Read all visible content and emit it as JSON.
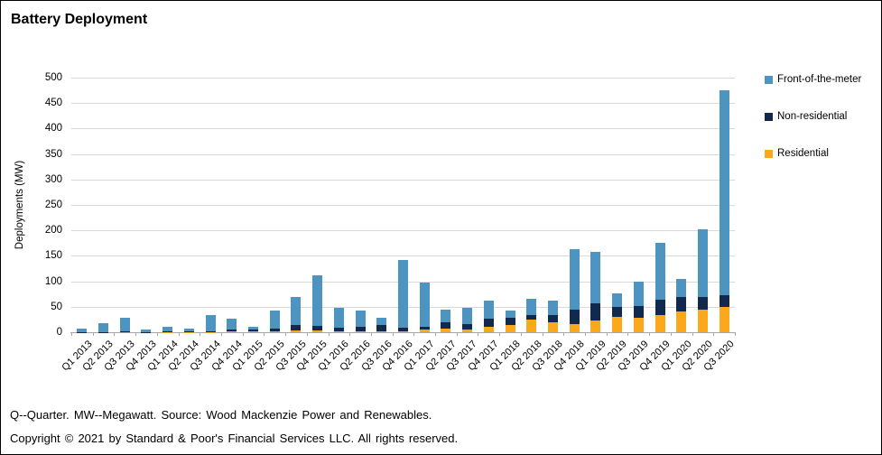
{
  "title": "Battery Deployment",
  "footer": {
    "line1": "Q--Quarter. MW--Megawatt. Source: Wood Mackenzie Power and Renewables.",
    "line2": "Copyright © 2021 by Standard & Poor's Financial Services LLC. All rights reserved."
  },
  "colors": {
    "front_of_the_meter": "#4D94C1",
    "non_residential": "#12294F",
    "residential": "#FBA81C",
    "gridline": "#d9d9d9",
    "axis": "#a6a6a6"
  },
  "chart_data": {
    "type": "bar",
    "stacked": true,
    "title": "Battery Deployment",
    "ylabel": "Deployments (MW)",
    "xlabel": "",
    "ylim": [
      0,
      500
    ],
    "ytick_step": 50,
    "yticks": [
      0,
      50,
      100,
      150,
      200,
      250,
      300,
      350,
      400,
      450,
      500
    ],
    "grid": true,
    "legend_position": "right",
    "legend_order": [
      "Front-of-the-meter",
      "Non-residential",
      "Residential"
    ],
    "categories": [
      "Q1 2013",
      "Q2 2013",
      "Q3 2013",
      "Q4 2013",
      "Q1 2014",
      "Q2 2014",
      "Q3 2014",
      "Q4 2014",
      "Q1 2015",
      "Q2 2015",
      "Q3 2015",
      "Q4 2015",
      "Q1 2016",
      "Q2 2016",
      "Q3 2016",
      "Q4 2016",
      "Q1 2017",
      "Q2 2017",
      "Q3 2017",
      "Q4 2017",
      "Q1 2018",
      "Q2 2018",
      "Q3 2018",
      "Q4 2018",
      "Q1 2019",
      "Q2 2019",
      "Q3 2019",
      "Q4 2019",
      "Q1 2020",
      "Q2 2020",
      "Q3 2020"
    ],
    "series": [
      {
        "name": "Residential",
        "color": "#FBA81C",
        "values": [
          0,
          0,
          0,
          0,
          0.5,
          0.5,
          0.5,
          1,
          1,
          1.5,
          3,
          3,
          2,
          2.5,
          2.5,
          2.5,
          4.5,
          7,
          4.5,
          10.5,
          15,
          24,
          19,
          16,
          23,
          29.5,
          29,
          34,
          40.5,
          45,
          50
        ]
      },
      {
        "name": "Non-residential",
        "color": "#12294F",
        "values": [
          0.5,
          0.5,
          1,
          0.5,
          1,
          1.5,
          2,
          5,
          4,
          6.5,
          12,
          9,
          7,
          8,
          12,
          7,
          6,
          12.5,
          11,
          15.5,
          13.5,
          9,
          14,
          29,
          34,
          20.5,
          22,
          30,
          29,
          25,
          22
        ]
      },
      {
        "name": "Front-of-the-meter",
        "color": "#4D94C1",
        "values": [
          7.5,
          17.5,
          27,
          5.5,
          9.5,
          6,
          30.5,
          21,
          6,
          34.5,
          54,
          100,
          39,
          32.5,
          13.5,
          132.5,
          86.5,
          24.5,
          32.5,
          36.5,
          14.5,
          32.5,
          29.5,
          118,
          100,
          25.5,
          48,
          111,
          34.5,
          132,
          403
        ]
      }
    ]
  }
}
